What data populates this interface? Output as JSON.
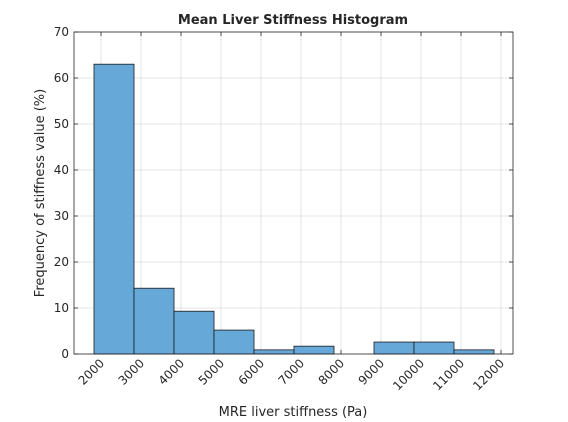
{
  "chart_data": {
    "type": "histogram",
    "title": "Mean Liver Stiffness Histogram",
    "xlabel": "MRE liver stiffness (Pa)",
    "ylabel": "Frequency of stiffness value (%)",
    "bins": [
      1825,
      2825,
      3825,
      4825,
      5825,
      6825,
      7825,
      8825,
      9825,
      10825,
      11825
    ],
    "values": [
      63,
      14.3,
      9.3,
      5.2,
      0.9,
      1.7,
      0,
      2.6,
      2.6,
      0.9
    ],
    "color": "#66a9d8",
    "edgecolor": "#1a1a1a",
    "xlim": [
      1325,
      12300
    ],
    "ylim": [
      0,
      70
    ],
    "xticks": [
      2000,
      3000,
      4000,
      5000,
      6000,
      7000,
      8000,
      9000,
      10000,
      11000,
      12000
    ],
    "yticks": [
      0,
      10,
      20,
      30,
      40,
      50,
      60,
      70
    ],
    "grid": true
  }
}
